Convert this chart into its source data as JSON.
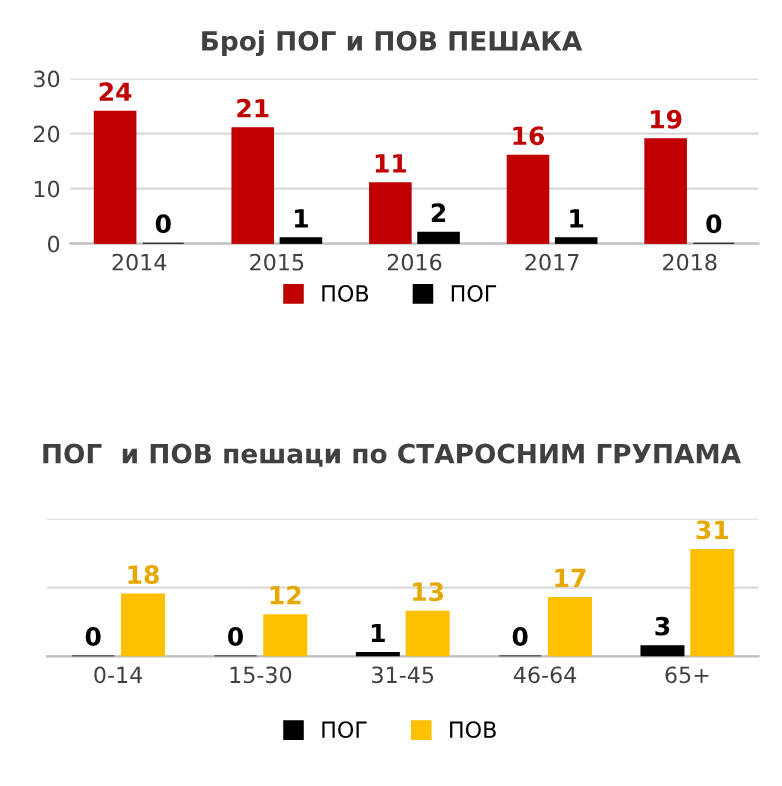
{
  "chart_data": [
    {
      "type": "bar",
      "title": "Број ПОГ и ПОВ ПЕШАКА",
      "categories": [
        "2014",
        "2015",
        "2016",
        "2017",
        "2018"
      ],
      "series": [
        {
          "name": "ПОВ",
          "color": "#c00000",
          "values": [
            24,
            21,
            11,
            16,
            19
          ]
        },
        {
          "name": "ПОГ",
          "color": "#000000",
          "values": [
            0,
            1,
            2,
            1,
            0
          ]
        }
      ],
      "ylim": [
        0,
        30
      ],
      "yticks": [
        0,
        10,
        20,
        30
      ],
      "grid": "y",
      "legend": "bottom",
      "data_labels": true
    },
    {
      "type": "bar",
      "title": "ПОГ  и ПОВ пешаци по СТАРОСНИМ ГРУПАМА",
      "categories": [
        "0-14",
        "15-30",
        "31-45",
        "46-64",
        "65+"
      ],
      "series": [
        {
          "name": "ПОГ",
          "color": "#000000",
          "values": [
            0,
            0,
            1,
            0,
            3
          ]
        },
        {
          "name": "ПОВ",
          "color": "#ffc000",
          "values": [
            18,
            12,
            13,
            17,
            31
          ]
        }
      ],
      "ylim": [
        0,
        40
      ],
      "yticks": [
        {
          "value": 0,
          "label": null
        },
        {
          "value": 20,
          "label": null
        },
        {
          "value": 40,
          "label": null
        }
      ],
      "tick_labels": "x",
      "grid": "y",
      "legend": "bottom",
      "data_labels": true
    }
  ]
}
